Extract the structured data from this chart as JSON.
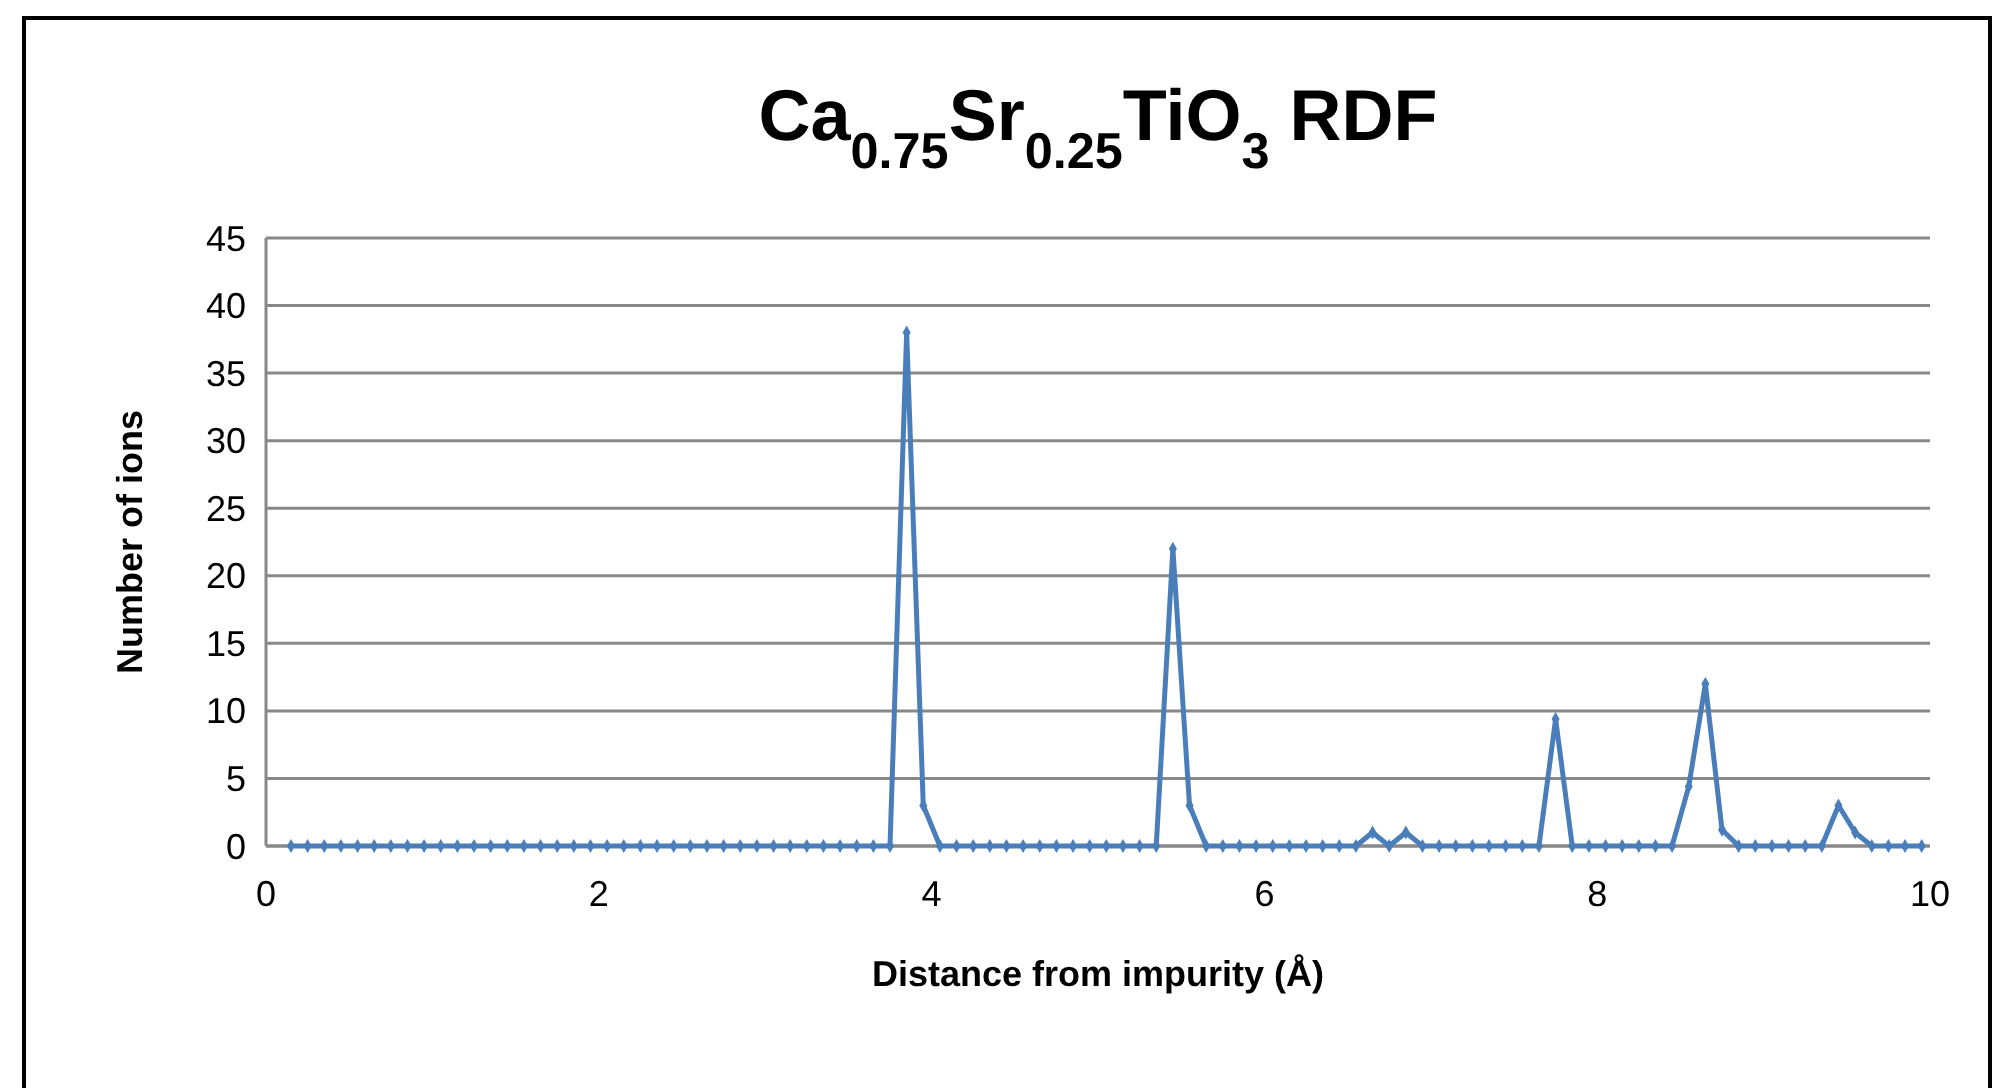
{
  "chart_data": {
    "type": "line",
    "title": "Ca$_{0.75}$Sr$_{0.25}$TiO$_{3}$ RDF",
    "xlabel": "Distance from impurity (Å)",
    "ylabel": "Number of ions",
    "x": [
      0.15,
      0.25,
      0.35,
      0.45,
      0.55,
      0.65,
      0.75,
      0.85,
      0.95,
      1.05,
      1.15,
      1.25,
      1.35,
      1.45,
      1.55,
      1.65,
      1.75,
      1.85,
      1.95,
      2.05,
      2.15,
      2.25,
      2.35,
      2.45,
      2.55,
      2.65,
      2.75,
      2.85,
      2.95,
      3.05,
      3.15,
      3.25,
      3.35,
      3.45,
      3.55,
      3.65,
      3.75,
      3.85,
      3.95,
      4.05,
      4.15,
      4.25,
      4.35,
      4.45,
      4.55,
      4.65,
      4.75,
      4.85,
      4.95,
      5.05,
      5.15,
      5.25,
      5.35,
      5.45,
      5.55,
      5.65,
      5.75,
      5.85,
      5.95,
      6.05,
      6.15,
      6.25,
      6.35,
      6.45,
      6.55,
      6.65,
      6.75,
      6.85,
      6.95,
      7.05,
      7.15,
      7.25,
      7.35,
      7.45,
      7.55,
      7.65,
      7.75,
      7.85,
      7.95,
      8.05,
      8.15,
      8.25,
      8.35,
      8.45,
      8.55,
      8.65,
      8.75,
      8.85,
      8.95,
      9.05,
      9.15,
      9.25,
      9.35,
      9.45,
      9.55,
      9.65,
      9.75,
      9.85,
      9.95
    ],
    "series": [
      {
        "color": "#4a7ebb",
        "values": [
          0,
          0,
          0,
          0,
          0,
          0,
          0,
          0,
          0,
          0,
          0,
          0,
          0,
          0,
          0,
          0,
          0,
          0,
          0,
          0,
          0,
          0,
          0,
          0,
          0,
          0,
          0,
          0,
          0,
          0,
          0,
          0,
          0,
          0,
          0,
          0,
          0,
          38,
          3,
          0,
          0,
          0,
          0,
          0,
          0,
          0,
          0,
          0,
          0,
          0,
          0,
          0,
          0,
          22,
          3,
          0,
          0,
          0,
          0,
          0,
          0,
          0,
          0,
          0,
          0,
          1,
          0,
          1,
          0,
          0,
          0,
          0,
          0,
          0,
          0,
          0,
          9.4,
          0,
          0,
          0,
          0,
          0,
          0,
          0,
          4.4,
          12,
          1.2,
          0,
          0,
          0,
          0,
          0,
          0,
          3,
          1,
          0,
          0,
          0,
          0
        ]
      }
    ],
    "xlim": [
      0,
      10
    ],
    "xticks": [
      0,
      2,
      4,
      6,
      8,
      10
    ],
    "ylim": [
      0,
      45
    ],
    "yticks": [
      0,
      5,
      10,
      15,
      20,
      25,
      30,
      35,
      40,
      45
    ],
    "grid": "y",
    "marker": "diamond",
    "line_style": "solid"
  }
}
